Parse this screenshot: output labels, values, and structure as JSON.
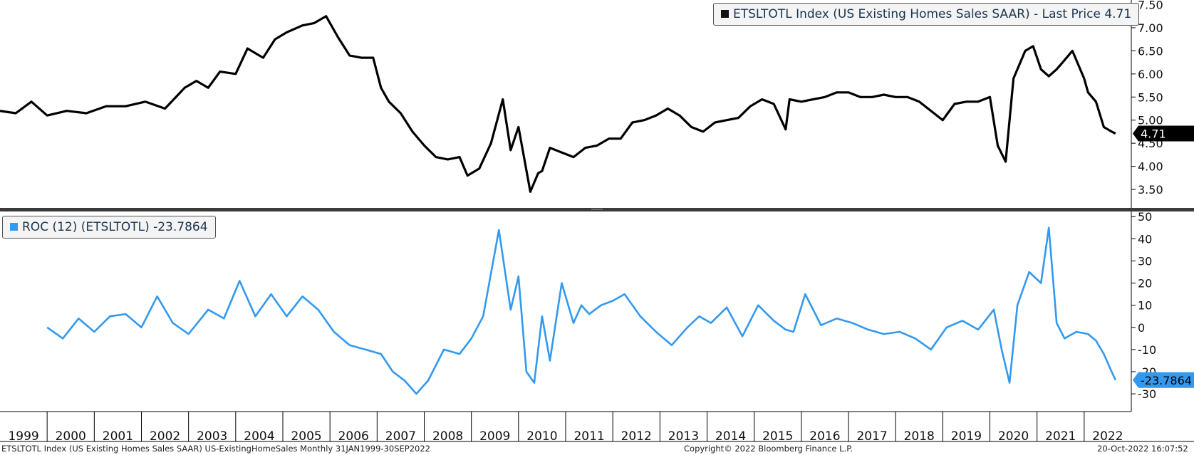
{
  "footer": {
    "left": "ETSLTOTL Index (US Existing Homes Sales SAAR) US-ExistingHomeSales  Monthly 31JAN1999-30SEP2022",
    "center": "Copyright© 2022 Bloomberg Finance L.P.",
    "right": "20-Oct-2022 16:07:52"
  },
  "colors": {
    "price": "#000000",
    "roc": "#3399ee",
    "text": "#1a3550"
  },
  "chart_data": [
    {
      "type": "line",
      "legend": "ETSLTOTL Index (US Existing Homes Sales SAAR) - Last Price 4.71",
      "last_value_label": "4.71",
      "ylim": [
        3.1,
        7.6
      ],
      "yticks": [
        "3.50",
        "4.00",
        "4.50",
        "5.00",
        "5.50",
        "6.00",
        "6.50",
        "7.00",
        "7.50"
      ],
      "x": [
        "1999-01",
        "1999-05",
        "1999-09",
        "2000-01",
        "2000-06",
        "2000-11",
        "2001-04",
        "2001-09",
        "2002-02",
        "2002-07",
        "2002-12",
        "2003-03",
        "2003-06",
        "2003-09",
        "2004-01",
        "2004-04",
        "2004-08",
        "2004-11",
        "2005-02",
        "2005-06",
        "2005-09",
        "2005-12",
        "2006-03",
        "2006-06",
        "2006-09",
        "2006-12",
        "2007-02",
        "2007-04",
        "2007-07",
        "2007-10",
        "2008-01",
        "2008-04",
        "2008-07",
        "2008-10",
        "2008-12",
        "2009-03",
        "2009-06",
        "2009-09",
        "2009-11",
        "2010-01",
        "2010-04",
        "2010-06",
        "2010-07",
        "2010-09",
        "2010-12",
        "2011-03",
        "2011-06",
        "2011-09",
        "2011-12",
        "2012-03",
        "2012-06",
        "2012-09",
        "2012-12",
        "2013-03",
        "2013-06",
        "2013-09",
        "2013-12",
        "2014-03",
        "2014-06",
        "2014-09",
        "2014-12",
        "2015-03",
        "2015-06",
        "2015-09",
        "2015-10",
        "2016-01",
        "2016-04",
        "2016-07",
        "2016-10",
        "2017-01",
        "2017-04",
        "2017-07",
        "2017-10",
        "2018-01",
        "2018-04",
        "2018-07",
        "2018-10",
        "2019-01",
        "2019-04",
        "2019-07",
        "2019-10",
        "2020-01",
        "2020-03",
        "2020-05",
        "2020-07",
        "2020-10",
        "2020-12",
        "2021-02",
        "2021-04",
        "2021-06",
        "2021-08",
        "2021-10",
        "2022-01",
        "2022-02",
        "2022-04",
        "2022-06",
        "2022-08",
        "2022-09"
      ],
      "values": [
        5.2,
        5.15,
        5.4,
        5.1,
        5.2,
        5.15,
        5.3,
        5.3,
        5.4,
        5.25,
        5.7,
        5.85,
        5.7,
        6.05,
        6.0,
        6.55,
        6.35,
        6.75,
        6.9,
        7.05,
        7.1,
        7.25,
        6.8,
        6.4,
        6.35,
        6.35,
        5.7,
        5.4,
        5.15,
        4.75,
        4.45,
        4.2,
        4.15,
        4.2,
        3.8,
        3.95,
        4.5,
        5.45,
        4.35,
        4.85,
        3.45,
        3.85,
        3.9,
        4.4,
        4.3,
        4.2,
        4.4,
        4.45,
        4.6,
        4.6,
        4.95,
        5.0,
        5.1,
        5.25,
        5.1,
        4.85,
        4.75,
        4.95,
        5.0,
        5.05,
        5.3,
        5.45,
        5.35,
        4.8,
        5.45,
        5.4,
        5.45,
        5.5,
        5.6,
        5.6,
        5.5,
        5.5,
        5.55,
        5.5,
        5.5,
        5.4,
        5.2,
        5.0,
        5.35,
        5.4,
        5.4,
        5.5,
        4.45,
        4.1,
        5.9,
        6.5,
        6.6,
        6.1,
        5.95,
        6.1,
        6.3,
        6.5,
        5.9,
        5.6,
        5.4,
        4.85,
        4.75,
        4.71
      ]
    },
    {
      "type": "line",
      "legend": "ROC (12) (ETSLTOTL) -23.7864",
      "last_value_label": "-23.7864",
      "ylim": [
        -38,
        52
      ],
      "yticks": [
        "-30",
        "-20",
        "-10",
        "0",
        "10",
        "20",
        "30",
        "40",
        "50"
      ],
      "x": [
        "2000-01",
        "2000-05",
        "2000-09",
        "2001-01",
        "2001-05",
        "2001-09",
        "2002-01",
        "2002-05",
        "2002-09",
        "2003-01",
        "2003-06",
        "2003-10",
        "2004-02",
        "2004-06",
        "2004-10",
        "2005-02",
        "2005-06",
        "2005-10",
        "2006-02",
        "2006-06",
        "2006-10",
        "2007-02",
        "2007-05",
        "2007-08",
        "2007-11",
        "2008-02",
        "2008-06",
        "2008-10",
        "2009-01",
        "2009-04",
        "2009-08",
        "2009-11",
        "2010-01",
        "2010-03",
        "2010-05",
        "2010-07",
        "2010-09",
        "2010-12",
        "2011-03",
        "2011-05",
        "2011-07",
        "2011-10",
        "2012-01",
        "2012-04",
        "2012-08",
        "2012-12",
        "2013-04",
        "2013-08",
        "2013-11",
        "2014-02",
        "2014-06",
        "2014-10",
        "2015-02",
        "2015-06",
        "2015-09",
        "2015-11",
        "2016-02",
        "2016-06",
        "2016-10",
        "2017-02",
        "2017-06",
        "2017-10",
        "2018-02",
        "2018-06",
        "2018-10",
        "2019-02",
        "2019-06",
        "2019-10",
        "2020-02",
        "2020-04",
        "2020-06",
        "2020-08",
        "2020-11",
        "2021-02",
        "2021-04",
        "2021-06",
        "2021-08",
        "2021-11",
        "2022-02",
        "2022-04",
        "2022-06",
        "2022-08",
        "2022-09"
      ],
      "values": [
        0,
        -5,
        4,
        -2,
        5,
        6,
        0,
        14,
        2,
        -3,
        8,
        4,
        21,
        5,
        15,
        5,
        14,
        8,
        -2,
        -8,
        -10,
        -12,
        -20,
        -24,
        -30,
        -24,
        -10,
        -12,
        -5,
        5,
        44,
        8,
        23,
        -20,
        -25,
        5,
        -15,
        20,
        2,
        10,
        6,
        10,
        12,
        15,
        5,
        -2,
        -8,
        0,
        5,
        2,
        9,
        -4,
        10,
        3,
        -1,
        -2,
        15,
        1,
        4,
        2,
        -1,
        -3,
        -2,
        -5,
        -10,
        0,
        3,
        -1,
        8,
        -10,
        -25,
        10,
        25,
        20,
        45,
        2,
        -5,
        -2,
        -3,
        -6,
        -12,
        -20,
        -23.7864
      ]
    }
  ],
  "x_axis": {
    "year_labels": [
      "1999",
      "2000",
      "2001",
      "2002",
      "2003",
      "2004",
      "2005",
      "2006",
      "2007",
      "2008",
      "2009",
      "2010",
      "2011",
      "2012",
      "2013",
      "2014",
      "2015",
      "2016",
      "2017",
      "2018",
      "2019",
      "2020",
      "2021",
      "2022"
    ]
  }
}
